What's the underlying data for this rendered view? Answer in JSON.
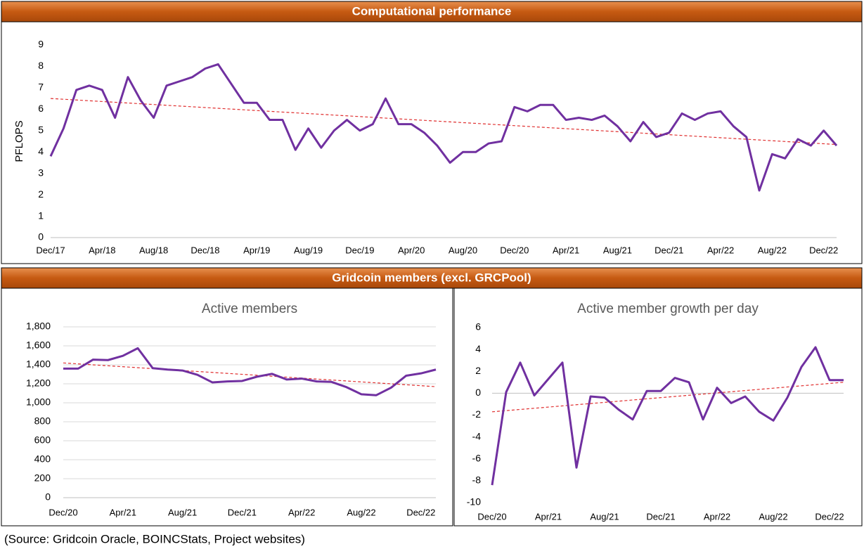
{
  "section_title": "Gridcoin members (excl. GRCPool)",
  "source": "(Source: Gridcoin Oracle, BOINCStats, Project websites)",
  "chart_data": [
    {
      "type": "line",
      "title": "Computational performance",
      "y_label": "PFLOPS",
      "categories": [
        "Dec/17",
        null,
        null,
        null,
        "Apr/18",
        null,
        null,
        null,
        "Aug/18",
        null,
        null,
        null,
        "Dec/18",
        null,
        null,
        null,
        "Apr/19",
        null,
        null,
        null,
        "Aug/19",
        null,
        null,
        null,
        "Dec/19",
        null,
        null,
        null,
        "Apr/20",
        null,
        null,
        null,
        "Aug/20",
        null,
        null,
        null,
        "Dec/20",
        null,
        null,
        null,
        "Apr/21",
        null,
        null,
        null,
        "Aug/21",
        null,
        null,
        null,
        "Dec/21",
        null,
        null,
        null,
        "Apr/22",
        null,
        null,
        null,
        "Aug/22",
        null,
        null,
        null,
        "Dec/22",
        null
      ],
      "series": [
        {
          "color": "#7030a0",
          "values": [
            3.8,
            5.1,
            6.9,
            7.1,
            6.9,
            5.6,
            7.5,
            6.4,
            5.6,
            7.1,
            7.3,
            7.5,
            7.9,
            8.1,
            7.2,
            6.3,
            6.3,
            5.5,
            5.5,
            4.1,
            5.1,
            4.2,
            5.0,
            5.5,
            5.0,
            5.3,
            6.5,
            5.3,
            5.3,
            4.9,
            4.3,
            3.5,
            4.0,
            4.0,
            4.4,
            4.5,
            6.1,
            5.9,
            6.2,
            6.2,
            5.5,
            5.6,
            5.5,
            5.7,
            5.2,
            4.5,
            5.4,
            4.7,
            4.9,
            5.8,
            5.5,
            5.8,
            5.9,
            5.2,
            4.7,
            2.2,
            3.9,
            3.7,
            4.6,
            4.3,
            5.0,
            4.3
          ]
        }
      ],
      "trendline": {
        "color": "#e03030",
        "values": [
          6.5,
          4.35
        ]
      },
      "ylim": [
        0,
        9
      ],
      "yticks": [
        0,
        1,
        2,
        3,
        4,
        5,
        6,
        7,
        8,
        9
      ],
      "grid": false
    },
    {
      "type": "line",
      "title": "Active members",
      "categories": [
        "Dec/20",
        null,
        null,
        null,
        "Apr/21",
        null,
        null,
        null,
        "Aug/21",
        null,
        null,
        null,
        "Dec/21",
        null,
        null,
        null,
        "Apr/22",
        null,
        null,
        null,
        "Aug/22",
        null,
        null,
        null,
        "Dec/22",
        null
      ],
      "series": [
        {
          "color": "#7030a0",
          "values": [
            1360,
            1360,
            1455,
            1450,
            1495,
            1575,
            1365,
            1350,
            1340,
            1295,
            1215,
            1225,
            1230,
            1275,
            1305,
            1245,
            1255,
            1225,
            1220,
            1165,
            1090,
            1080,
            1160,
            1285,
            1310,
            1350
          ]
        }
      ],
      "trendline": {
        "color": "#e03030",
        "values": [
          1420,
          1170
        ]
      },
      "ylim": [
        0,
        1800
      ],
      "yticks": [
        0,
        200,
        400,
        600,
        800,
        {
          "value": 1000,
          "label": "1,000"
        },
        {
          "value": 1200,
          "label": "1,200"
        },
        {
          "value": 1400,
          "label": "1,400"
        },
        {
          "value": 1600,
          "label": "1,600"
        },
        {
          "value": 1800,
          "label": "1,800"
        }
      ],
      "grid": true
    },
    {
      "type": "line",
      "title": "Active member growth per day",
      "categories": [
        "Dec/20",
        null,
        null,
        null,
        "Apr/21",
        null,
        null,
        null,
        "Aug/21",
        null,
        null,
        null,
        "Dec/21",
        null,
        null,
        null,
        "Apr/22",
        null,
        null,
        null,
        "Aug/22",
        null,
        null,
        null,
        "Dec/22",
        null
      ],
      "series": [
        {
          "color": "#7030a0",
          "values": [
            -8.4,
            0.1,
            2.8,
            -0.2,
            1.3,
            2.8,
            -6.8,
            -0.3,
            -0.4,
            -1.5,
            -2.4,
            0.2,
            0.2,
            1.4,
            1.0,
            -2.4,
            0.5,
            -0.9,
            -0.3,
            -1.7,
            -2.5,
            -0.4,
            2.4,
            4.2,
            1.2,
            1.2
          ]
        }
      ],
      "trendline": {
        "color": "#e03030",
        "values": [
          -1.7,
          1.0
        ]
      },
      "ylim": [
        -10,
        6
      ],
      "yticks": [
        -10,
        -8,
        -6,
        -4,
        -2,
        0,
        2,
        4,
        6
      ],
      "grid": false
    }
  ]
}
